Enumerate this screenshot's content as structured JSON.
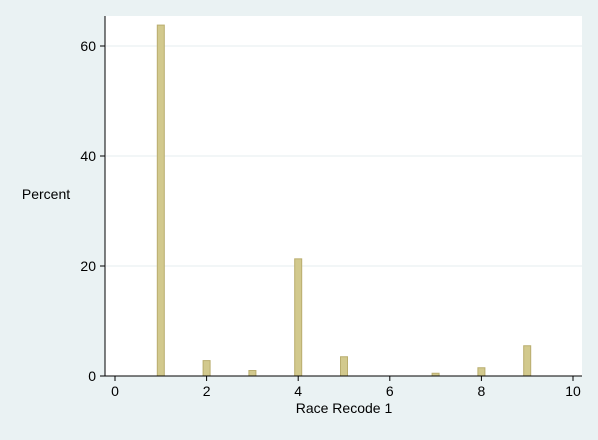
{
  "chart_data": {
    "type": "bar",
    "title": "",
    "xlabel": "Race Recode 1",
    "ylabel": "Percent",
    "xlim": [
      0,
      10
    ],
    "ylim": [
      0,
      65
    ],
    "x_ticks": [
      0,
      2,
      4,
      6,
      8,
      10
    ],
    "y_ticks": [
      0,
      20,
      40,
      60
    ],
    "grid": true,
    "x": [
      1,
      2,
      3,
      4,
      5,
      7,
      8,
      9
    ],
    "values": [
      63.8,
      2.8,
      1.0,
      21.3,
      3.5,
      0.5,
      1.5,
      5.5
    ],
    "colors": {
      "bar_fill": "#d2c98d",
      "bar_edge": "#b9ad6e",
      "plot_bg": "#ffffff",
      "outer_bg": "#eaf2f3",
      "grid": "#e6eeef"
    }
  }
}
